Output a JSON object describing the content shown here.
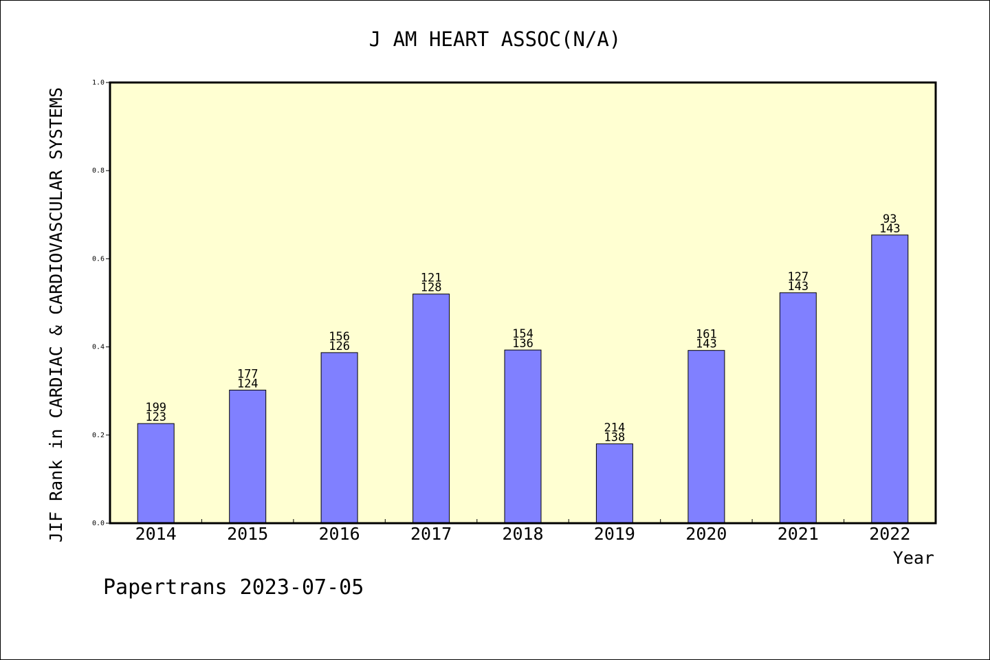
{
  "chart_data": {
    "type": "bar",
    "title": "J AM HEART ASSOC(N/A)",
    "xlabel": "Year",
    "ylabel": "JIF Rank in CARDIAC & CARDIOVASCULAR SYSTEMS",
    "categories": [
      "2014",
      "2015",
      "2016",
      "2017",
      "2018",
      "2019",
      "2020",
      "2021",
      "2022"
    ],
    "values": [
      0.226,
      0.302,
      0.387,
      0.52,
      0.393,
      0.18,
      0.392,
      0.523,
      0.654
    ],
    "bar_labels_top": [
      "199",
      "177",
      "156",
      "121",
      "154",
      "214",
      "161",
      "127",
      "93"
    ],
    "bar_labels_bottom": [
      "123",
      "124",
      "126",
      "128",
      "136",
      "138",
      "143",
      "143",
      "143"
    ],
    "ylim": [
      0,
      1.0
    ],
    "yticks": [
      "0.0",
      "0.2",
      "0.4",
      "0.6",
      "0.8",
      "1.0"
    ],
    "grid": false,
    "bar_color": "#8080ff",
    "plot_background": "#ffffd2"
  },
  "footer": {
    "watermark": "Papertrans 2023-07-05"
  }
}
